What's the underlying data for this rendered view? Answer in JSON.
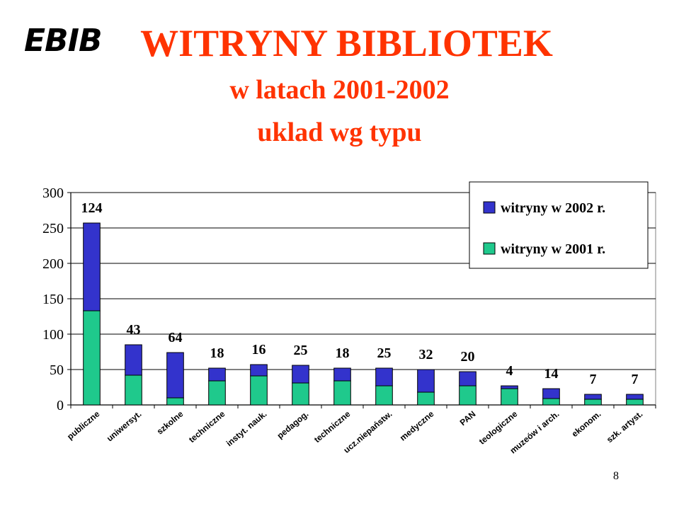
{
  "logo": "EBIB",
  "title": "WITRYNY BIBLIOTEK",
  "subtitle1": "w latach 2001-2002",
  "subtitle2": "uklad wg typu",
  "page_number": "8",
  "colors": {
    "title": "#ff3300",
    "series_2001": "#1fc98c",
    "series_2002": "#3333cc"
  },
  "chart_data": {
    "type": "bar",
    "stacked": true,
    "categories": [
      "publiczne",
      "uniwersyt.",
      "szkolne",
      "techniczne",
      "instyt. nauk.",
      "pedagog.",
      "techniczne",
      "ucz.niepaństw.",
      "medyczne",
      "PAN",
      "teologiczne",
      "muzeów i arch.",
      "ekonom.",
      "szk. artyst."
    ],
    "series": [
      {
        "name": "witryny w 2001 r.",
        "color": "#1fc98c",
        "values": [
          133,
          42,
          10,
          34,
          41,
          31,
          34,
          27,
          18,
          27,
          23,
          9,
          8,
          8
        ]
      },
      {
        "name": "witryny w 2002 r.",
        "color": "#3333cc",
        "values": [
          124,
          43,
          64,
          18,
          16,
          25,
          18,
          25,
          32,
          20,
          4,
          14,
          7,
          7
        ]
      }
    ],
    "data_labels": [
      "124",
      "43",
      "64",
      "18",
      "16",
      "25",
      "18",
      "25",
      "32",
      "20",
      "4",
      "14",
      "7",
      "7"
    ],
    "ylim": [
      0,
      300
    ],
    "yticks": [
      "0",
      "50",
      "100",
      "150",
      "200",
      "250",
      "300"
    ],
    "grid": true,
    "legend_position": "top-right",
    "legend_order": [
      "witryny w 2002 r.",
      "witryny w 2001 r."
    ]
  }
}
